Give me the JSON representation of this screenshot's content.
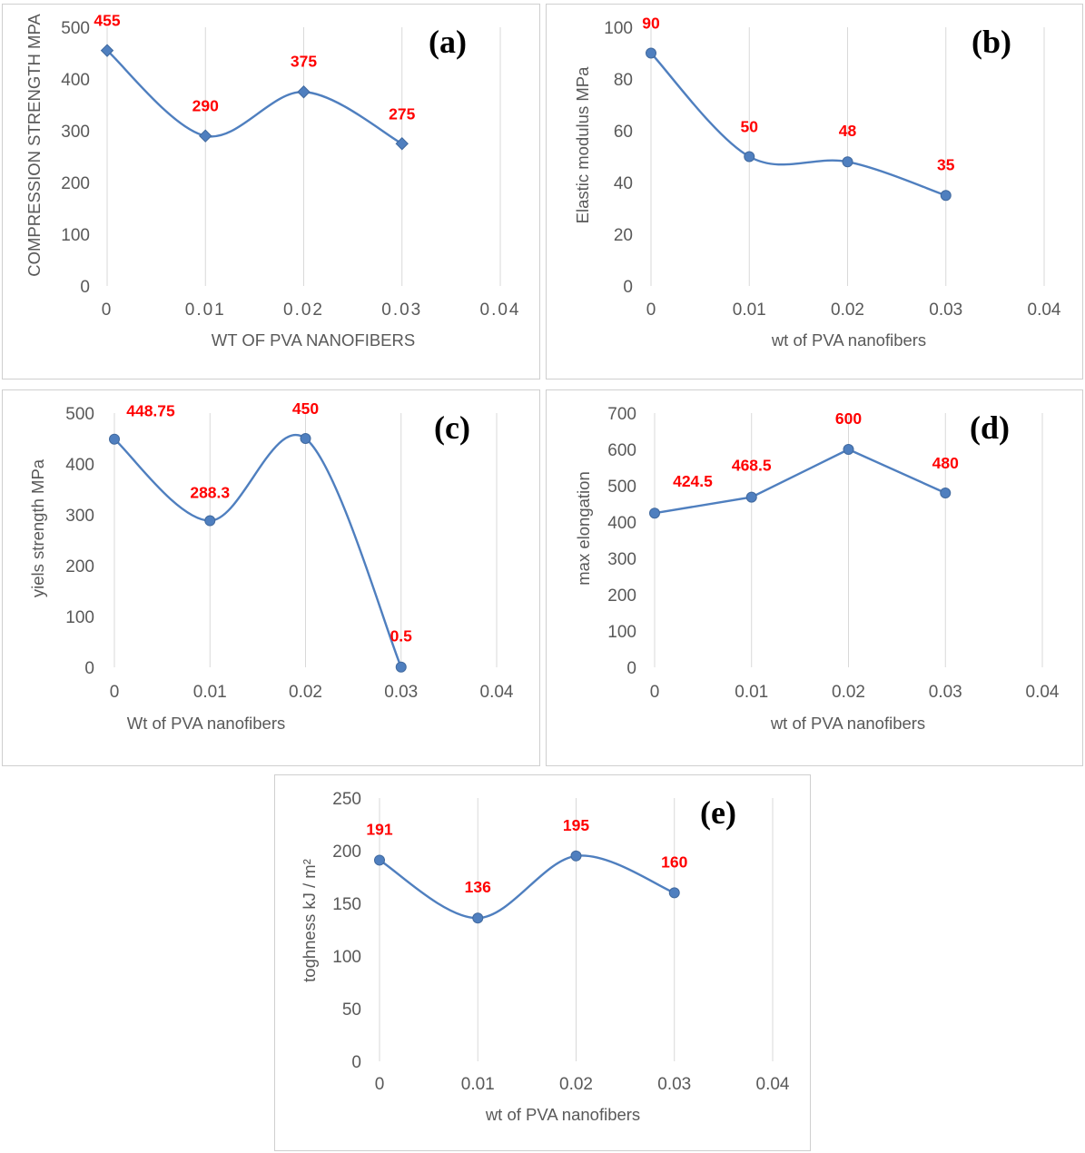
{
  "chart_data": [
    {
      "id": "a",
      "type": "line",
      "panel_label": "(a)",
      "marker": "diamond",
      "smooth": true,
      "x": [
        0,
        0.01,
        0.02,
        0.03
      ],
      "values": [
        455,
        290,
        375,
        275
      ],
      "data_labels": [
        "455",
        "290",
        "375",
        "275"
      ],
      "xlabel": "WT OF PVA NANOFIBERS",
      "ylabel": "COMPRESSION STRENGTH MPA",
      "xlim": [
        0,
        0.04
      ],
      "ylim": [
        0,
        500
      ],
      "x_ticks": [
        "0",
        "0.01",
        "0.02",
        "0.03",
        "0.04"
      ],
      "y_ticks": [
        "0",
        "100",
        "200",
        "300",
        "400",
        "500"
      ],
      "grid": "vertical"
    },
    {
      "id": "b",
      "type": "line",
      "panel_label": "(b)",
      "marker": "circle",
      "smooth": true,
      "x": [
        0,
        0.01,
        0.02,
        0.03
      ],
      "values": [
        90,
        50,
        48,
        35
      ],
      "data_labels": [
        "90",
        "50",
        "48",
        "35"
      ],
      "xlabel": "wt of PVA nanofibers",
      "ylabel": "Elastic modulus MPa",
      "xlim": [
        0,
        0.04
      ],
      "ylim": [
        0,
        100
      ],
      "x_ticks": [
        "0",
        "0.01",
        "0.02",
        "0.03",
        "0.04"
      ],
      "y_ticks": [
        "0",
        "20",
        "40",
        "60",
        "80",
        "100"
      ],
      "grid": "vertical"
    },
    {
      "id": "c",
      "type": "line",
      "panel_label": "(c)",
      "marker": "circle",
      "smooth": true,
      "x": [
        0,
        0.01,
        0.02,
        0.03
      ],
      "values": [
        448.75,
        288.3,
        450,
        0.5
      ],
      "data_labels": [
        "448.75",
        "288.3",
        "450",
        "0.5"
      ],
      "xlabel": "Wt of PVA nanofibers",
      "ylabel": "yiels strength MPa",
      "xlim": [
        0,
        0.04
      ],
      "ylim": [
        0,
        500
      ],
      "x_ticks": [
        "0",
        "0.01",
        "0.02",
        "0.03",
        "0.04"
      ],
      "y_ticks": [
        "0",
        "100",
        "200",
        "300",
        "400",
        "500"
      ],
      "grid": "vertical"
    },
    {
      "id": "d",
      "type": "line",
      "panel_label": "(d)",
      "marker": "circle",
      "smooth": false,
      "x": [
        0,
        0.01,
        0.02,
        0.03
      ],
      "values": [
        424.5,
        468.5,
        600,
        480
      ],
      "data_labels": [
        "424.5",
        "468.5",
        "600",
        "480"
      ],
      "xlabel": "wt of PVA nanofibers",
      "ylabel": "max elongation",
      "xlim": [
        0,
        0.04
      ],
      "ylim": [
        0,
        700
      ],
      "x_ticks": [
        "0",
        "0.01",
        "0.02",
        "0.03",
        "0.04"
      ],
      "y_ticks": [
        "0",
        "100",
        "200",
        "300",
        "400",
        "500",
        "600",
        "700"
      ],
      "grid": "vertical"
    },
    {
      "id": "e",
      "type": "line",
      "panel_label": "(e)",
      "marker": "circle",
      "smooth": true,
      "x": [
        0,
        0.01,
        0.02,
        0.03
      ],
      "values": [
        191,
        136,
        195,
        160
      ],
      "data_labels": [
        "191",
        "136",
        "195",
        "160"
      ],
      "xlabel": "wt of PVA nanofibers",
      "ylabel": "toghness kJ / m²",
      "xlim": [
        0,
        0.04
      ],
      "ylim": [
        0,
        250
      ],
      "x_ticks": [
        "0",
        "0.01",
        "0.02",
        "0.03",
        "0.04"
      ],
      "y_ticks": [
        "0",
        "50",
        "100",
        "150",
        "200",
        "250"
      ],
      "grid": "vertical"
    }
  ]
}
